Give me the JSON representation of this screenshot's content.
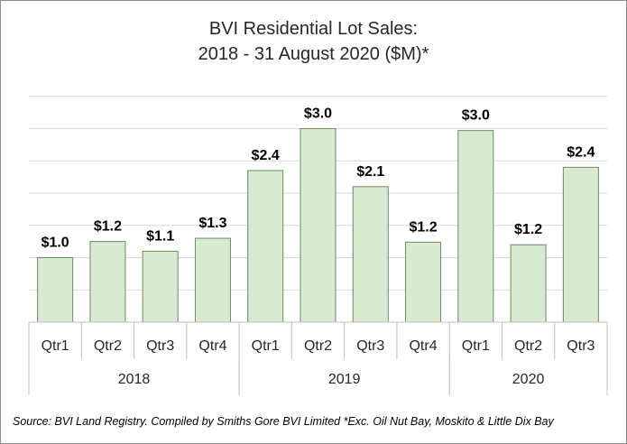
{
  "chart_data": {
    "type": "bar",
    "title_line1": "BVI Residential Lot Sales:",
    "title_line2": "2018 - 31 August 2020 ($M)*",
    "ylim": [
      0,
      3.5
    ],
    "gridlines": [
      0.5,
      1.0,
      1.5,
      2.0,
      2.5,
      3.0,
      3.5
    ],
    "bar_color": "#d9ead3",
    "bar_border": "#6e8a63",
    "groups": [
      {
        "year": "2018",
        "bars": [
          {
            "quarter": "Qtr1",
            "value": 1.0,
            "label": "$1.0"
          },
          {
            "quarter": "Qtr2",
            "value": 1.25,
            "label": "$1.2"
          },
          {
            "quarter": "Qtr3",
            "value": 1.1,
            "label": "$1.1"
          },
          {
            "quarter": "Qtr4",
            "value": 1.3,
            "label": "$1.3"
          }
        ]
      },
      {
        "year": "2019",
        "bars": [
          {
            "quarter": "Qtr1",
            "value": 2.35,
            "label": "$2.4"
          },
          {
            "quarter": "Qtr2",
            "value": 3.0,
            "label": "$3.0"
          },
          {
            "quarter": "Qtr3",
            "value": 2.1,
            "label": "$2.1"
          },
          {
            "quarter": "Qtr4",
            "value": 1.24,
            "label": "$1.2"
          }
        ]
      },
      {
        "year": "2020",
        "bars": [
          {
            "quarter": "Qtr1",
            "value": 2.97,
            "label": "$3.0"
          },
          {
            "quarter": "Qtr2",
            "value": 1.2,
            "label": "$1.2"
          },
          {
            "quarter": "Qtr3",
            "value": 2.4,
            "label": "$2.4"
          }
        ]
      }
    ]
  },
  "source_note": "Source: BVI Land Registry. Compiled by Smiths Gore BVI Limited *Exc. Oil Nut Bay, Moskito & Little Dix Bay"
}
